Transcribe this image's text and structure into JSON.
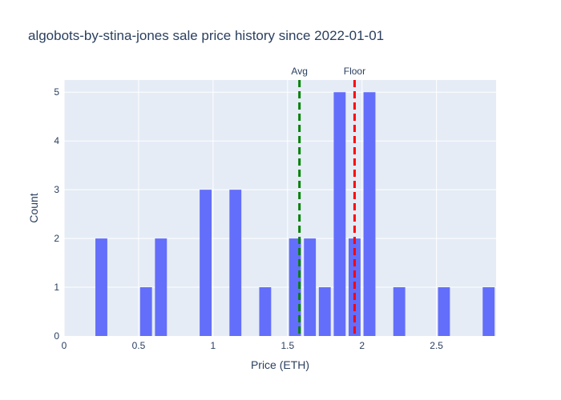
{
  "chart_data": {
    "type": "bar",
    "title": "algobots-by-stina-jones sale price history since 2022-01-01",
    "xlabel": "Price (ETH)",
    "ylabel": "Count",
    "xlim": [
      0,
      2.9
    ],
    "ylim": [
      0,
      5.25
    ],
    "bin_width": 0.1,
    "x_ticks": [
      0,
      0.5,
      1,
      1.5,
      2,
      2.5
    ],
    "x_tick_labels": [
      "0",
      "0.5",
      "1",
      "1.5",
      "2",
      "2.5"
    ],
    "y_ticks": [
      0,
      1,
      2,
      3,
      4,
      5
    ],
    "y_tick_labels": [
      "0",
      "1",
      "2",
      "3",
      "4",
      "5"
    ],
    "bins": [
      {
        "x": 0.25,
        "count": 2
      },
      {
        "x": 0.55,
        "count": 1
      },
      {
        "x": 0.65,
        "count": 2
      },
      {
        "x": 0.95,
        "count": 3
      },
      {
        "x": 1.15,
        "count": 3
      },
      {
        "x": 1.35,
        "count": 1
      },
      {
        "x": 1.55,
        "count": 2
      },
      {
        "x": 1.65,
        "count": 2
      },
      {
        "x": 1.75,
        "count": 1
      },
      {
        "x": 1.85,
        "count": 5
      },
      {
        "x": 1.95,
        "count": 2
      },
      {
        "x": 2.05,
        "count": 5
      },
      {
        "x": 2.25,
        "count": 1
      },
      {
        "x": 2.55,
        "count": 1
      },
      {
        "x": 2.85,
        "count": 1
      }
    ],
    "reference_lines": [
      {
        "label": "Avg",
        "x": 1.58,
        "color": "#008000"
      },
      {
        "label": "Floor",
        "x": 1.95,
        "color": "#ff0000"
      }
    ],
    "bar_color": "#636efa",
    "plot_bgcolor": "#e5ecf6",
    "grid": true
  }
}
